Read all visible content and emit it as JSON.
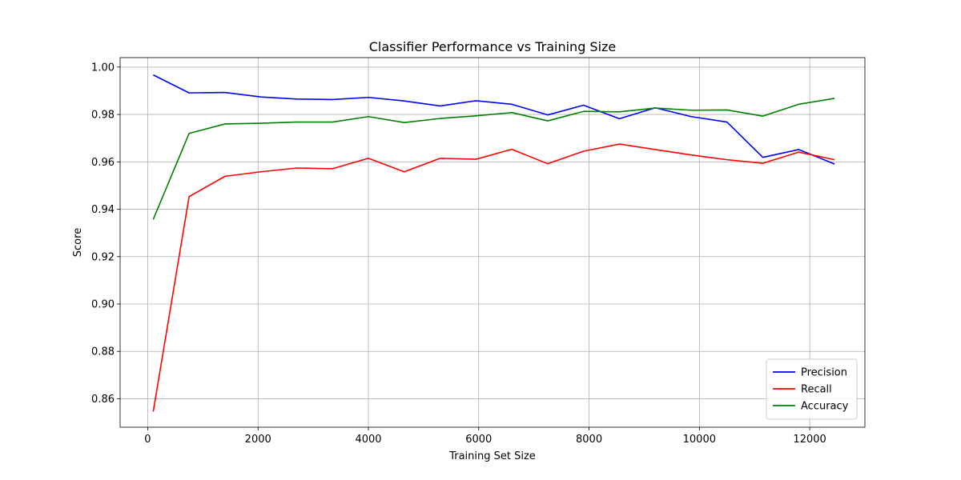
{
  "chart_data": {
    "type": "line",
    "title": "Classifier Performance vs Training Size",
    "xlabel": "Training Set Size",
    "ylabel": "Score",
    "xlim": [
      -500,
      13000
    ],
    "ylim": [
      0.848,
      1.004
    ],
    "xticks": [
      0,
      2000,
      4000,
      6000,
      8000,
      10000,
      12000
    ],
    "xtick_labels": [
      "0",
      "2000",
      "4000",
      "6000",
      "8000",
      "10000",
      "12000"
    ],
    "yticks": [
      0.86,
      0.88,
      0.9,
      0.92,
      0.94,
      0.96,
      0.98,
      1.0
    ],
    "ytick_labels": [
      "0.86",
      "0.88",
      "0.90",
      "0.92",
      "0.94",
      "0.96",
      "0.98",
      "1.00"
    ],
    "grid": true,
    "legend_position": "bottom-right",
    "x": [
      100,
      750,
      1400,
      2050,
      2700,
      3350,
      4000,
      4650,
      5300,
      5950,
      6600,
      7250,
      7900,
      8550,
      9200,
      9850,
      10500,
      11150,
      11800,
      12450
    ],
    "series": [
      {
        "name": "Precision",
        "color": "#0000ff",
        "values": [
          0.9967,
          0.9891,
          0.9893,
          0.9874,
          0.9865,
          0.9863,
          0.9872,
          0.9857,
          0.9836,
          0.9858,
          0.9843,
          0.9798,
          0.9839,
          0.9782,
          0.9828,
          0.9791,
          0.9768,
          0.9619,
          0.9652,
          0.9591
        ]
      },
      {
        "name": "Recall",
        "color": "#ff0000",
        "values": [
          0.8546,
          0.9453,
          0.9539,
          0.9558,
          0.9574,
          0.9571,
          0.9615,
          0.9558,
          0.9615,
          0.9611,
          0.9653,
          0.9592,
          0.9645,
          0.9675,
          0.9652,
          0.9629,
          0.9609,
          0.9594,
          0.9641,
          0.9609
        ]
      },
      {
        "name": "Accuracy",
        "color": "#008000",
        "values": [
          0.9357,
          0.972,
          0.976,
          0.9763,
          0.9768,
          0.9768,
          0.9791,
          0.9766,
          0.9783,
          0.9794,
          0.9808,
          0.9773,
          0.9813,
          0.9811,
          0.9827,
          0.9818,
          0.9819,
          0.9793,
          0.9843,
          0.9868
        ]
      }
    ]
  }
}
